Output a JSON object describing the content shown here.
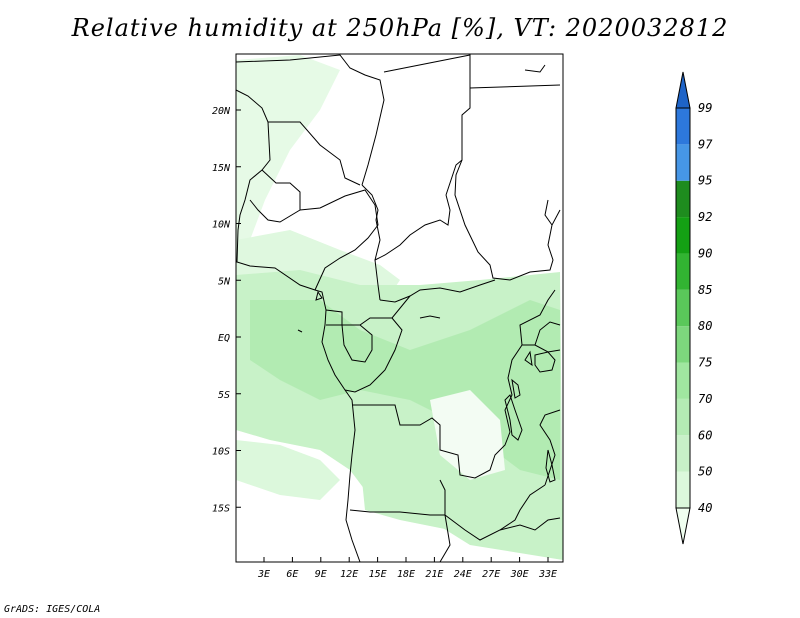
{
  "title": "Relative humidity at 250hPa [%], VT: 2020032812",
  "credit": "GrADS: IGES/COLA",
  "map": {
    "lon_range": [
      0,
      34
    ],
    "lat_range": [
      -20,
      25
    ],
    "lat_ticks": [
      "20N",
      "15N",
      "10N",
      "5N",
      "EQ",
      "5S",
      "10S",
      "15S"
    ],
    "lon_ticks": [
      "3E",
      "6E",
      "9E",
      "12E",
      "15E",
      "18E",
      "21E",
      "24E",
      "27E",
      "30E",
      "33E"
    ]
  },
  "colorbar": {
    "labels": [
      "40",
      "50",
      "60",
      "70",
      "75",
      "80",
      "85",
      "90",
      "92",
      "95",
      "97",
      "99"
    ],
    "colors": [
      "#f0fff0",
      "#dcf8dc",
      "#c8f0c8",
      "#b4ebb4",
      "#a0e6a0",
      "#7dd77d",
      "#5ac85a",
      "#32b432",
      "#14a014",
      "#1e8c1e",
      "#4696e6",
      "#2d78dc",
      "#1e64c8"
    ]
  },
  "colors": {
    "humid_light": "#e6fae6",
    "humid_mid": "#c8f2c8",
    "humid_dark": "#b2ebb2",
    "border": "#000000"
  }
}
